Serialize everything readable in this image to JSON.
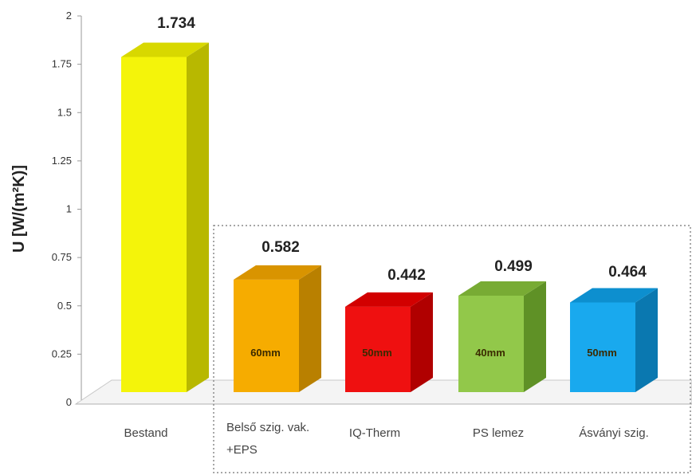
{
  "chart_data": {
    "type": "bar",
    "title": "",
    "ylabel": "U [W/(m²K)]",
    "xlabel": "",
    "ylim": [
      0,
      2
    ],
    "yticks": [
      "0",
      "0.25",
      "0.5",
      "0.75",
      "1",
      "1.25",
      "1.5",
      "1.75",
      "2"
    ],
    "categories": [
      {
        "label_lines": [
          "Bestand"
        ]
      },
      {
        "label_lines": [
          "Belső szig. vak.",
          "+EPS"
        ]
      },
      {
        "label_lines": [
          "IQ-Therm"
        ]
      },
      {
        "label_lines": [
          "PS lemez"
        ]
      },
      {
        "label_lines": [
          "Ásványi szig."
        ]
      }
    ],
    "values": [
      1.734,
      0.582,
      0.442,
      0.499,
      0.464
    ],
    "value_labels": [
      "1.734",
      "0.582",
      "0.442",
      "0.499",
      "0.464"
    ],
    "bar_annotations": [
      "",
      "60mm",
      "50mm",
      "40mm",
      "50mm"
    ],
    "colors": [
      {
        "front": "#f4f40a",
        "top": "#d8d800",
        "side": "#b8b800"
      },
      {
        "front": "#f6ac00",
        "top": "#d99400",
        "side": "#b98000"
      },
      {
        "front": "#ef1010",
        "top": "#d20000",
        "side": "#b00000"
      },
      {
        "front": "#92c84a",
        "top": "#78ab34",
        "side": "#5f9126"
      },
      {
        "front": "#19a9ee",
        "top": "#0d8fcf",
        "side": "#0a78b0"
      }
    ],
    "grid": false,
    "style": "3d-bar",
    "highlight": "dotted box around the four insulation variants"
  }
}
